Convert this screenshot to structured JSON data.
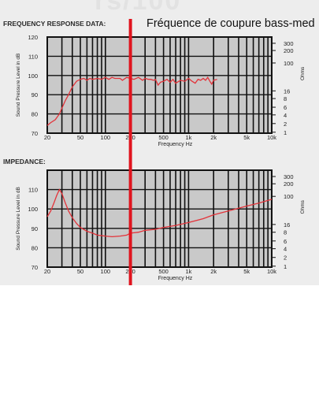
{
  "watermark": "rs/100",
  "annotation": "Fréquence de coupure bass-med",
  "cutoff_hz": 200,
  "cutoff_color": "#e0141e",
  "curve_color": "#e3333a",
  "chart_data": [
    {
      "type": "line",
      "title": "FREQUENCY RESPONSE DATA:",
      "xlabel": "Frequency Hz",
      "ylabel": "Sound Pressure Level in dB",
      "y2label": "Ohms",
      "x_scale": "log",
      "xlim": [
        20,
        10000
      ],
      "ylim": [
        70,
        120
      ],
      "x_ticks": [
        20,
        50,
        100,
        200,
        500,
        1000,
        2000,
        5000,
        10000
      ],
      "x_tick_labels": [
        "20",
        "50",
        "100",
        "200",
        "500",
        "1k",
        "2k",
        "5k",
        "10k"
      ],
      "y_ticks": [
        70,
        80,
        90,
        100,
        110,
        120
      ],
      "y2_ticks": [
        "1",
        "2",
        "4",
        "6",
        "8",
        "16",
        "100",
        "200",
        "300"
      ],
      "grid": true,
      "series": [
        {
          "x": [
            20,
            22,
            25,
            28,
            30,
            33,
            36,
            40,
            45,
            50,
            55,
            60,
            65,
            70,
            80,
            90,
            100,
            110,
            120,
            130,
            150,
            160,
            180,
            200,
            220,
            250,
            280,
            300,
            330,
            350,
            380,
            400,
            430,
            460,
            500,
            550,
            600,
            650,
            700,
            800,
            900,
            1000,
            1100,
            1200,
            1300,
            1400,
            1500,
            1600,
            1700,
            1800,
            1900,
            2000,
            2200
          ],
          "y": [
            74,
            75.5,
            77,
            80,
            83,
            87,
            90,
            94,
            97,
            98,
            98.5,
            97.5,
            98.5,
            98,
            98.5,
            98,
            99,
            98,
            99,
            98.5,
            98.5,
            97.5,
            99,
            98.5,
            98,
            99,
            97.5,
            98.5,
            98,
            98,
            97.5,
            98,
            95,
            96.5,
            97,
            98,
            96.5,
            98,
            96,
            97.5,
            97,
            98.5,
            97,
            96,
            98,
            97.5,
            98.5,
            97.5,
            99,
            97,
            95.5,
            97.5,
            98
          ]
        }
      ]
    },
    {
      "type": "line",
      "title": "IMPEDANCE:",
      "xlabel": "Frequency Hz",
      "ylabel": "Sound Pressure Level in dB",
      "y2label": "Ohms",
      "x_scale": "log",
      "xlim": [
        20,
        10000
      ],
      "ylim": [
        70,
        120
      ],
      "x_ticks": [
        20,
        50,
        100,
        200,
        500,
        1000,
        2000,
        5000,
        10000
      ],
      "x_tick_labels": [
        "20",
        "50",
        "100",
        "200",
        "500",
        "1k",
        "2k",
        "5k",
        "10k"
      ],
      "y_ticks": [
        70,
        80,
        90,
        100,
        110
      ],
      "y2_ticks": [
        "1",
        "2",
        "4",
        "6",
        "8",
        "16",
        "100",
        "200",
        "300"
      ],
      "grid": true,
      "series": [
        {
          "x": [
            20,
            22,
            24,
            26,
            28,
            30,
            33,
            36,
            40,
            45,
            50,
            60,
            70,
            80,
            100,
            120,
            150,
            180,
            200,
            250,
            300,
            400,
            500,
            700,
            1000,
            1500,
            2000,
            3000,
            5000,
            7000,
            10000
          ],
          "y": [
            96,
            99,
            103,
            107,
            110,
            108,
            103,
            99,
            95.5,
            92.5,
            90.5,
            88.5,
            87.5,
            86.5,
            86,
            85.7,
            86,
            86.5,
            87.5,
            88,
            89,
            89.5,
            90.5,
            91.5,
            93,
            95,
            97,
            99,
            101.5,
            103,
            105
          ]
        }
      ]
    }
  ]
}
